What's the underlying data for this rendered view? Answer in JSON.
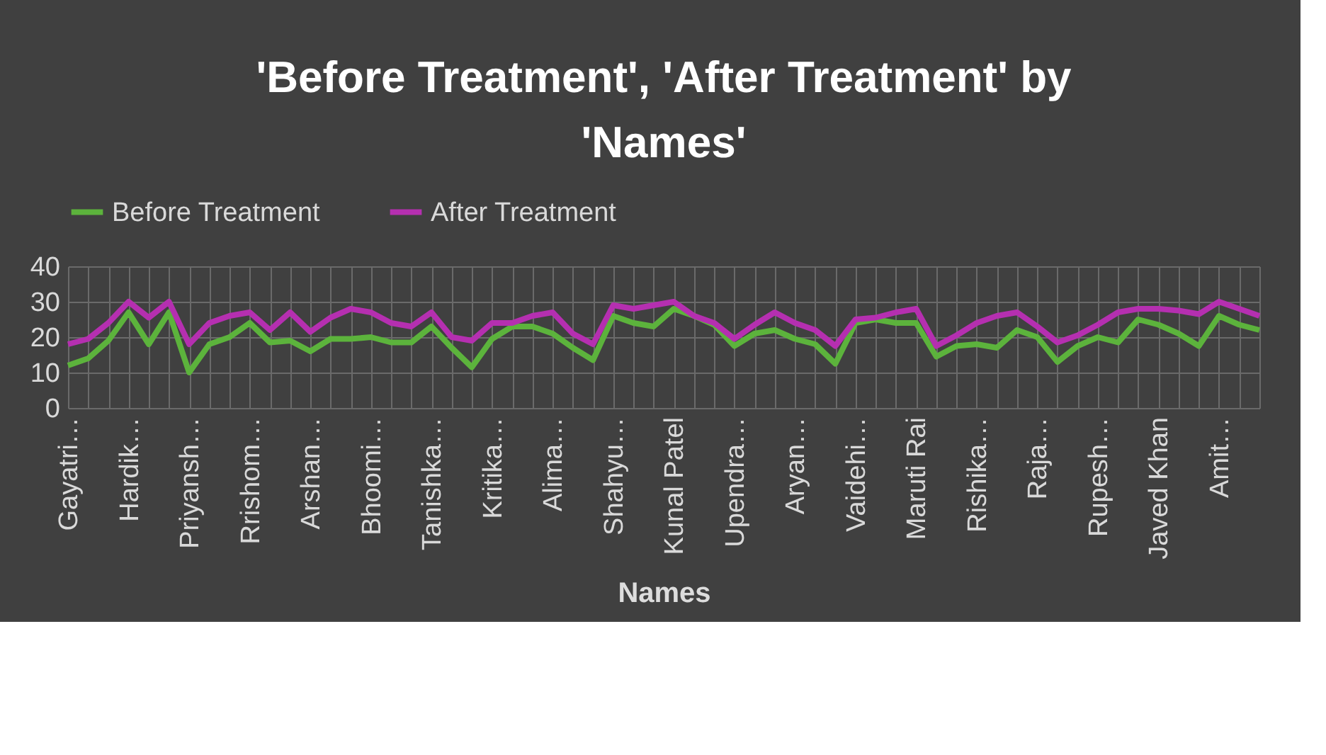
{
  "chart_data": {
    "type": "line",
    "title": "'Before Treatment', 'After Treatment' by 'Names'",
    "xlabel": "Names",
    "categories": [
      "Gayatri…",
      null,
      null,
      "Hardik…",
      null,
      null,
      "Priyansh…",
      null,
      null,
      "Rrishom…",
      null,
      null,
      "Arshan…",
      null,
      null,
      "Bhoomi…",
      null,
      null,
      "Tanishka…",
      null,
      null,
      "Kritika…",
      null,
      null,
      "Alima…",
      null,
      null,
      "Shahyu…",
      null,
      null,
      "Kunal Patel",
      null,
      null,
      "Upendra…",
      null,
      null,
      "Aryan…",
      null,
      null,
      "Vaidehi…",
      null,
      null,
      "Maruti Rai",
      null,
      null,
      "Rishika…",
      null,
      null,
      "Raja…",
      null,
      null,
      "Rupesh…",
      null,
      null,
      "Javed Khan",
      null,
      null,
      "Amit…",
      null,
      null
    ],
    "series": [
      {
        "name": "Before Treatment",
        "color": "#5cb33c",
        "values": [
          12,
          14,
          19,
          27,
          18,
          27,
          10,
          18,
          20,
          24,
          18.5,
          19,
          16,
          19.5,
          19.5,
          20,
          18.5,
          18.5,
          23,
          17,
          11.5,
          19.5,
          23,
          23,
          21,
          17,
          13.5,
          26,
          24,
          23,
          28,
          26,
          23.5,
          17.5,
          21,
          22,
          19.5,
          18,
          12.5,
          24,
          25,
          24,
          24,
          14.5,
          17.5,
          18,
          17,
          22,
          20,
          13,
          17.5,
          20,
          18.5,
          25,
          23.5,
          21,
          17.5,
          26,
          23.5,
          22
        ]
      },
      {
        "name": "After Treatment",
        "color": "#b52fb0",
        "values": [
          18,
          19.5,
          24,
          30,
          25.5,
          30,
          18,
          24,
          26,
          27,
          22,
          27,
          21.5,
          25.5,
          28,
          27,
          24,
          23,
          27,
          20,
          19,
          24,
          24,
          26,
          27,
          21,
          18,
          29,
          28,
          29,
          30,
          26,
          24,
          19.5,
          23.5,
          27,
          24,
          22,
          17.5,
          25,
          25.5,
          27,
          28,
          17.5,
          20.5,
          24,
          26,
          27,
          23,
          18.5,
          20.5,
          23.5,
          27,
          28,
          28,
          27.5,
          26.5,
          30,
          28,
          26
        ]
      }
    ],
    "ylim": [
      0,
      40
    ],
    "yticks": [
      0,
      10,
      20,
      30,
      40
    ],
    "grid": true,
    "legend": "top"
  }
}
